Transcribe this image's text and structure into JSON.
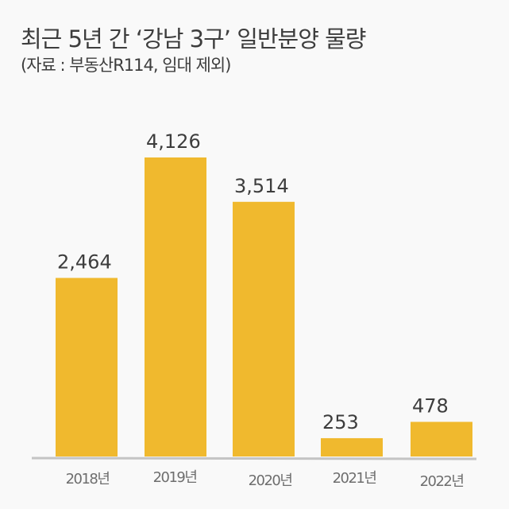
{
  "chart_data": {
    "type": "bar",
    "title": "최근 5년 간 ‘강남 3구’ 일반분양 물량",
    "subtitle": "(자료 : 부동산R114, 임대 제외)",
    "categories": [
      "2018년",
      "2019년",
      "2020년",
      "2021년",
      "2022년"
    ],
    "values": [
      2464,
      4126,
      3514,
      253,
      478
    ],
    "data_labels": [
      "2,464",
      "4,126",
      "3,514",
      "253",
      "478"
    ],
    "xlabel": "",
    "ylabel": "",
    "ylim": [
      0,
      4126
    ],
    "grid": false,
    "legend": "none",
    "colors": {
      "bar": "#f0b92e",
      "axis": "#c4c4c4",
      "text": "#3d3d3d",
      "tick": "#6e6e6e"
    }
  }
}
